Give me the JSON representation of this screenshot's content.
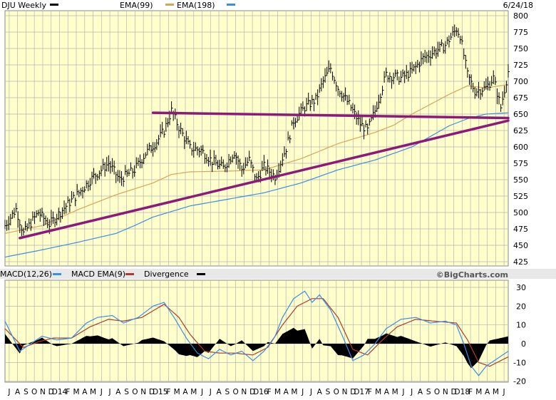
{
  "colors": {
    "panel_bg": "#ffffcc",
    "grid": "#a8a8a8",
    "price": "#000000",
    "ema99": "#d9a45a",
    "ema198": "#3b8fe0",
    "trendline": "#8b1a7a",
    "macd_signal": "#b03a2e",
    "divergence": "#000000",
    "header_bg": "#ffffff",
    "strip_bg": "#e8e8e8"
  },
  "chart_data": [
    {
      "type": "line",
      "title": "DJU Weekly",
      "date": "6/24/18",
      "legend": [
        {
          "label": "EMA(99)",
          "color": "#d9a45a"
        },
        {
          "label": "EMA(198)",
          "color": "#3b8fe0"
        }
      ],
      "ylim": [
        425,
        800
      ],
      "yticks": [
        425,
        450,
        475,
        500,
        525,
        550,
        575,
        600,
        625,
        650,
        675,
        700,
        725,
        750,
        775,
        800
      ],
      "grid": true,
      "x_weeks": 246,
      "price_keypoints": [
        [
          0,
          480
        ],
        [
          6,
          505
        ],
        [
          10,
          468
        ],
        [
          18,
          500
        ],
        [
          24,
          482
        ],
        [
          32,
          507
        ],
        [
          40,
          530
        ],
        [
          48,
          555
        ],
        [
          56,
          575
        ],
        [
          62,
          550
        ],
        [
          70,
          565
        ],
        [
          76,
          590
        ],
        [
          82,
          608
        ],
        [
          86,
          625
        ],
        [
          90,
          655
        ],
        [
          94,
          630
        ],
        [
          100,
          598
        ],
        [
          106,
          595
        ],
        [
          112,
          578
        ],
        [
          118,
          568
        ],
        [
          124,
          592
        ],
        [
          128,
          566
        ],
        [
          132,
          580
        ],
        [
          136,
          550
        ],
        [
          140,
          570
        ],
        [
          146,
          555
        ],
        [
          152,
          598
        ],
        [
          156,
          640
        ],
        [
          162,
          660
        ],
        [
          168,
          672
        ],
        [
          172,
          700
        ],
        [
          176,
          720
        ],
        [
          180,
          690
        ],
        [
          186,
          665
        ],
        [
          192,
          635
        ],
        [
          196,
          625
        ],
        [
          200,
          655
        ],
        [
          206,
          710
        ],
        [
          214,
          705
        ],
        [
          220,
          715
        ],
        [
          226,
          735
        ],
        [
          232,
          745
        ],
        [
          238,
          755
        ],
        [
          244,
          780
        ],
        [
          246,
          770
        ],
        [
          250,
          710
        ],
        [
          254,
          685
        ],
        [
          260,
          690
        ],
        [
          264,
          705
        ],
        [
          268,
          660
        ],
        [
          272,
          715
        ]
      ],
      "ema99_keypoints": [
        [
          0,
          468
        ],
        [
          20,
          480
        ],
        [
          40,
          505
        ],
        [
          60,
          527
        ],
        [
          80,
          545
        ],
        [
          90,
          558
        ],
        [
          100,
          562
        ],
        [
          120,
          563
        ],
        [
          140,
          565
        ],
        [
          160,
          582
        ],
        [
          180,
          605
        ],
        [
          200,
          622
        ],
        [
          210,
          633
        ],
        [
          220,
          650
        ],
        [
          240,
          680
        ],
        [
          250,
          693
        ],
        [
          260,
          690
        ],
        [
          272,
          695
        ]
      ],
      "ema198_keypoints": [
        [
          0,
          432
        ],
        [
          20,
          443
        ],
        [
          40,
          455
        ],
        [
          60,
          468
        ],
        [
          70,
          480
        ],
        [
          80,
          493
        ],
        [
          100,
          510
        ],
        [
          120,
          520
        ],
        [
          140,
          530
        ],
        [
          160,
          545
        ],
        [
          180,
          565
        ],
        [
          200,
          580
        ],
        [
          210,
          590
        ],
        [
          220,
          600
        ],
        [
          240,
          632
        ],
        [
          250,
          643
        ],
        [
          260,
          650
        ],
        [
          272,
          652
        ]
      ],
      "trendlines": [
        {
          "name": "horizontal-resistance",
          "from": [
            80,
            652
          ],
          "to": [
            272,
            644
          ]
        },
        {
          "name": "rising-support",
          "from": [
            8,
            461
          ],
          "to": [
            272,
            640
          ]
        }
      ]
    },
    {
      "type": "bar",
      "title": "MACD(12,26)",
      "legend": [
        {
          "label": "MACD EMA(9)",
          "color": "#b03a2e"
        },
        {
          "label": "Divergence",
          "color": "#000000"
        }
      ],
      "watermark": "©BigCharts.com",
      "ylim": [
        -22,
        32
      ],
      "yticks": [
        30,
        20,
        10,
        0,
        -10,
        -20
      ],
      "grid": true,
      "macd_keypoints": [
        [
          0,
          12
        ],
        [
          8,
          -4
        ],
        [
          14,
          0
        ],
        [
          20,
          4
        ],
        [
          28,
          2
        ],
        [
          36,
          3
        ],
        [
          44,
          11
        ],
        [
          50,
          14
        ],
        [
          58,
          15
        ],
        [
          64,
          11
        ],
        [
          72,
          14
        ],
        [
          80,
          20
        ],
        [
          86,
          22
        ],
        [
          92,
          13
        ],
        [
          98,
          3
        ],
        [
          104,
          -5
        ],
        [
          110,
          -8
        ],
        [
          116,
          -3
        ],
        [
          122,
          -6
        ],
        [
          128,
          -4
        ],
        [
          134,
          -9
        ],
        [
          140,
          -4
        ],
        [
          146,
          4
        ],
        [
          150,
          14
        ],
        [
          156,
          24
        ],
        [
          162,
          28
        ],
        [
          166,
          22
        ],
        [
          170,
          26
        ],
        [
          176,
          18
        ],
        [
          182,
          5
        ],
        [
          188,
          -9
        ],
        [
          194,
          -6
        ],
        [
          200,
          0
        ],
        [
          206,
          8
        ],
        [
          214,
          13
        ],
        [
          222,
          14
        ],
        [
          230,
          11
        ],
        [
          238,
          12
        ],
        [
          244,
          10
        ],
        [
          248,
          0
        ],
        [
          252,
          -12
        ],
        [
          256,
          -17
        ],
        [
          260,
          -12
        ],
        [
          266,
          -8
        ],
        [
          272,
          -4
        ]
      ],
      "signal_keypoints": [
        [
          0,
          8
        ],
        [
          10,
          -2
        ],
        [
          18,
          1
        ],
        [
          26,
          3
        ],
        [
          36,
          3
        ],
        [
          46,
          9
        ],
        [
          56,
          13
        ],
        [
          64,
          12
        ],
        [
          74,
          14
        ],
        [
          86,
          21
        ],
        [
          94,
          14
        ],
        [
          100,
          5
        ],
        [
          108,
          -4
        ],
        [
          116,
          -5
        ],
        [
          124,
          -5
        ],
        [
          134,
          -6
        ],
        [
          142,
          -2
        ],
        [
          150,
          10
        ],
        [
          158,
          20
        ],
        [
          166,
          24
        ],
        [
          172,
          24
        ],
        [
          180,
          14
        ],
        [
          188,
          -3
        ],
        [
          196,
          -6
        ],
        [
          204,
          2
        ],
        [
          212,
          9
        ],
        [
          222,
          13
        ],
        [
          232,
          12
        ],
        [
          244,
          11
        ],
        [
          250,
          2
        ],
        [
          256,
          -10
        ],
        [
          262,
          -12
        ],
        [
          268,
          -9
        ],
        [
          272,
          -7
        ]
      ]
    }
  ],
  "x_axis": {
    "labels": [
      "J",
      "A",
      "S",
      "O",
      "N",
      "D",
      "14",
      "F",
      "M",
      "A",
      "M",
      "J",
      "J",
      "A",
      "S",
      "O",
      "N",
      "D",
      "15",
      "F",
      "M",
      "A",
      "M",
      "J",
      "J",
      "A",
      "S",
      "O",
      "N",
      "D",
      "16",
      "F",
      "M",
      "A",
      "M",
      "J",
      "J",
      "A",
      "S",
      "O",
      "N",
      "D",
      "17",
      "F",
      "M",
      "A",
      "M",
      "J",
      "J",
      "A",
      "S",
      "O",
      "N",
      "D",
      "18",
      "F",
      "M",
      "A",
      "M",
      "J"
    ],
    "year_prefix": "D"
  }
}
